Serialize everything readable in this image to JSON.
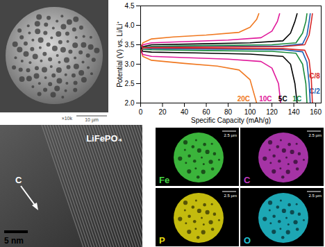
{
  "chart_data": {
    "type": "line",
    "x_label": "Specific Capacity (mAh/g)",
    "y_label": "Potential (V) vs. Li/Li⁺",
    "xlim": [
      0,
      165
    ],
    "xticks": [
      0,
      20,
      40,
      60,
      80,
      100,
      120,
      140,
      160
    ],
    "ylim": [
      2.0,
      4.5
    ],
    "yticks": [
      {
        "value": 2.0,
        "label": "2.0"
      },
      {
        "value": 2.5,
        "label": "2.5"
      },
      {
        "value": 3.0,
        "label": "3.0"
      },
      {
        "value": 3.5,
        "label": "3.5"
      },
      {
        "value": 4.0,
        "label": "4.0"
      },
      {
        "value": 4.5,
        "label": "4.5"
      }
    ],
    "series": [
      {
        "name": "20C",
        "color": "#f07820",
        "label_at": [
          100,
          2.1
        ],
        "charge": {
          "x": [
            0,
            2,
            10,
            30,
            60,
            90,
            100,
            106,
            108
          ],
          "values": [
            3.3,
            3.55,
            3.65,
            3.7,
            3.75,
            3.82,
            3.95,
            4.15,
            4.3
          ]
        },
        "discharge": {
          "x": [
            0,
            2,
            10,
            40,
            70,
            90,
            100,
            106
          ],
          "values": [
            3.4,
            3.2,
            3.1,
            3.02,
            2.95,
            2.85,
            2.6,
            2.0
          ]
        }
      },
      {
        "name": "10C",
        "color": "#e0189a",
        "label_at": [
          120,
          2.1
        ],
        "charge": {
          "x": [
            0,
            2,
            10,
            40,
            80,
            110,
            120,
            125,
            127
          ],
          "values": [
            3.3,
            3.5,
            3.55,
            3.58,
            3.62,
            3.68,
            3.85,
            4.1,
            4.3
          ]
        },
        "discharge": {
          "x": [
            0,
            2,
            10,
            40,
            80,
            110,
            120,
            126,
            128
          ],
          "values": [
            3.4,
            3.25,
            3.2,
            3.17,
            3.13,
            3.07,
            2.9,
            2.5,
            2.0
          ]
        }
      },
      {
        "name": "5C",
        "color": "#000000",
        "label_at": [
          134,
          2.1
        ],
        "charge": {
          "x": [
            0,
            2,
            10,
            50,
            100,
            130,
            137,
            141,
            143
          ],
          "values": [
            3.3,
            3.45,
            3.5,
            3.52,
            3.55,
            3.6,
            3.8,
            4.1,
            4.3
          ]
        },
        "discharge": {
          "x": [
            0,
            2,
            10,
            50,
            100,
            130,
            137,
            141,
            143
          ],
          "values": [
            3.45,
            3.33,
            3.31,
            3.29,
            3.26,
            3.2,
            3.0,
            2.5,
            2.0
          ]
        }
      },
      {
        "name": "1C",
        "color": "#1a8a3a",
        "label_at": [
          147,
          2.1
        ],
        "charge": {
          "x": [
            0,
            2,
            10,
            60,
            120,
            142,
            148,
            151,
            152
          ],
          "values": [
            3.3,
            3.43,
            3.46,
            3.48,
            3.5,
            3.55,
            3.8,
            4.1,
            4.3
          ]
        },
        "discharge": {
          "x": [
            0,
            2,
            10,
            60,
            120,
            142,
            148,
            151,
            152
          ],
          "values": [
            3.5,
            3.38,
            3.37,
            3.35,
            3.33,
            3.28,
            3.0,
            2.5,
            2.0
          ]
        }
      },
      {
        "name": "C/2",
        "color": "#1a5fb4",
        "label_at": [
          164,
          2.3
        ],
        "charge": {
          "x": [
            0,
            2,
            10,
            60,
            130,
            148,
            152,
            154,
            155
          ],
          "values": [
            3.3,
            3.42,
            3.44,
            3.45,
            3.47,
            3.52,
            3.75,
            4.1,
            4.3
          ]
        },
        "discharge": {
          "x": [
            0,
            2,
            10,
            60,
            130,
            148,
            152,
            154,
            155
          ],
          "values": [
            3.5,
            3.41,
            3.4,
            3.39,
            3.37,
            3.32,
            3.05,
            2.5,
            2.0
          ]
        }
      },
      {
        "name": "C/8",
        "color": "#d62728",
        "label_at": [
          164,
          2.7
        ],
        "charge": {
          "x": [
            0,
            2,
            10,
            60,
            130,
            150,
            154,
            156,
            157
          ],
          "values": [
            3.3,
            3.42,
            3.43,
            3.44,
            3.45,
            3.5,
            3.75,
            4.1,
            4.3
          ]
        },
        "discharge": {
          "x": [
            0,
            2,
            10,
            60,
            130,
            150,
            154,
            156,
            157
          ],
          "values": [
            3.5,
            3.43,
            3.42,
            3.41,
            3.4,
            3.36,
            3.1,
            2.6,
            2.0
          ]
        }
      }
    ]
  },
  "sem_image": {
    "magnification": "×10k",
    "scale_bar": "10 µm"
  },
  "tem_image": {
    "phase_label": "LiFePO₄",
    "arrow_label": "C",
    "scale_bar": "5 nm"
  },
  "element_maps": [
    {
      "element": "Fe",
      "color": "#45d445",
      "scale_bar": "2.5 µm"
    },
    {
      "element": "C",
      "color": "#c23cc2",
      "scale_bar": "2.5 µm"
    },
    {
      "element": "P",
      "color": "#e6dc10",
      "scale_bar": "2.5 µm"
    },
    {
      "element": "O",
      "color": "#22c4d4",
      "scale_bar": "2.5 µm"
    }
  ]
}
